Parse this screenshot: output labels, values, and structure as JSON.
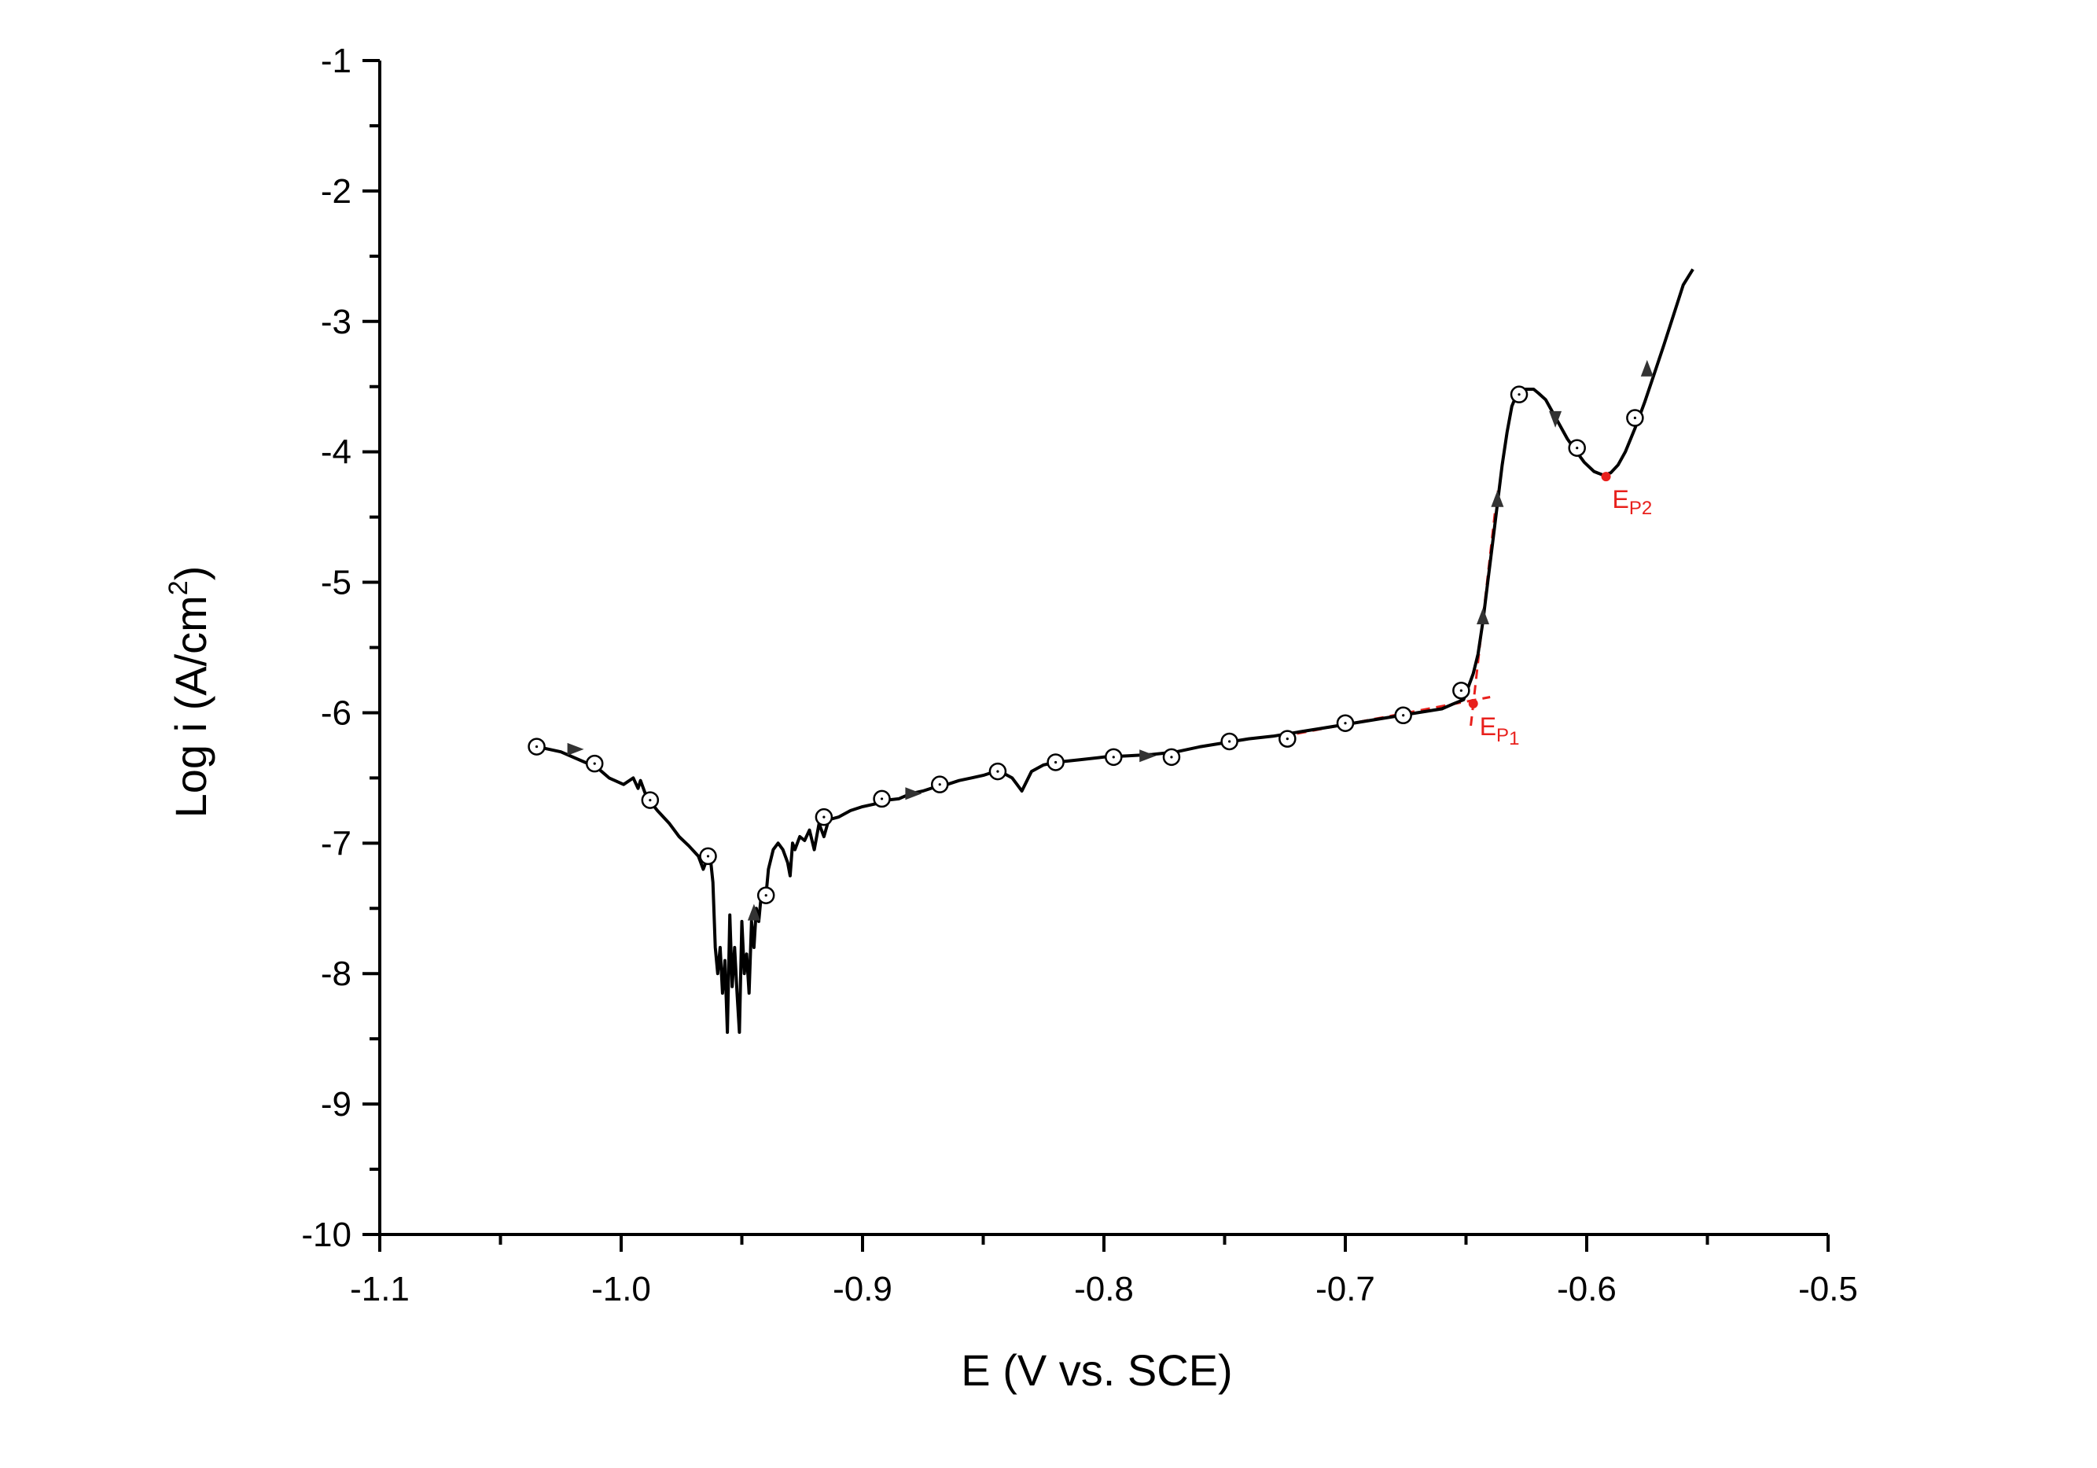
{
  "chart_data": {
    "type": "line",
    "title": "",
    "xlabel": "E (V vs. SCE)",
    "ylabel": "Log i (A/cm",
    "ylabel_superscript": "2",
    "ylabel_close": ")",
    "xlim": [
      -1.1,
      -0.5
    ],
    "ylim": [
      -10,
      -1
    ],
    "x_ticks": [
      -1.1,
      -1.0,
      -0.9,
      -0.8,
      -0.7,
      -0.6,
      -0.5
    ],
    "x_tick_labels": [
      "-1.1",
      "-1.0",
      "-0.9",
      "-0.8",
      "-0.7",
      "-0.6",
      "-0.5"
    ],
    "y_ticks": [
      -10,
      -9,
      -8,
      -7,
      -6,
      -5,
      -4,
      -3,
      -2,
      -1
    ],
    "y_tick_labels": [
      "-10",
      "-9",
      "-8",
      "-7",
      "-6",
      "-5",
      "-4",
      "-3",
      "-2",
      "-1"
    ],
    "grid": false,
    "series": [
      {
        "color": "#000000",
        "x": [
          -1.035,
          -1.025,
          -1.015,
          -1.01,
          -1.005,
          -0.999,
          -0.995,
          -0.993,
          -0.992,
          -0.99,
          -0.988,
          -0.985,
          -0.98,
          -0.976,
          -0.972,
          -0.968,
          -0.966,
          -0.965,
          -0.964,
          -0.963,
          -0.962,
          -0.961,
          -0.96,
          -0.959,
          -0.958,
          -0.957,
          -0.956,
          -0.955,
          -0.954,
          -0.953,
          -0.952,
          -0.951,
          -0.95,
          -0.949,
          -0.948,
          -0.947,
          -0.946,
          -0.945,
          -0.944,
          -0.943,
          -0.942,
          -0.941,
          -0.94,
          -0.939,
          -0.937,
          -0.935,
          -0.933,
          -0.931,
          -0.93,
          -0.929,
          -0.928,
          -0.926,
          -0.924,
          -0.922,
          -0.92,
          -0.918,
          -0.916,
          -0.914,
          -0.91,
          -0.905,
          -0.9,
          -0.895,
          -0.89,
          -0.885,
          -0.88,
          -0.875,
          -0.87,
          -0.865,
          -0.86,
          -0.855,
          -0.85,
          -0.845,
          -0.842,
          -0.838,
          -0.836,
          -0.834,
          -0.83,
          -0.825,
          -0.82,
          -0.81,
          -0.8,
          -0.79,
          -0.78,
          -0.77,
          -0.76,
          -0.75,
          -0.74,
          -0.73,
          -0.72,
          -0.71,
          -0.7,
          -0.69,
          -0.68,
          -0.67,
          -0.66,
          -0.655,
          -0.651,
          -0.649,
          -0.647,
          -0.645,
          -0.643,
          -0.641,
          -0.639,
          -0.637,
          -0.635,
          -0.633,
          -0.631,
          -0.629,
          -0.627,
          -0.625,
          -0.622,
          -0.62,
          -0.617,
          -0.614,
          -0.611,
          -0.608,
          -0.605,
          -0.601,
          -0.597,
          -0.593,
          -0.59,
          -0.587,
          -0.584,
          -0.58,
          -0.576,
          -0.572,
          -0.568,
          -0.564,
          -0.56,
          -0.556
        ],
        "y": [
          -6.26,
          -6.3,
          -6.38,
          -6.42,
          -6.5,
          -6.55,
          -6.5,
          -6.58,
          -6.52,
          -6.62,
          -6.68,
          -6.75,
          -6.85,
          -6.95,
          -7.02,
          -7.1,
          -7.2,
          -7.15,
          -7.05,
          -7.12,
          -7.3,
          -7.8,
          -8.0,
          -7.8,
          -8.15,
          -7.9,
          -8.45,
          -7.55,
          -8.1,
          -7.8,
          -8.15,
          -8.45,
          -7.6,
          -8.0,
          -7.85,
          -8.15,
          -7.6,
          -7.8,
          -7.5,
          -7.6,
          -7.4,
          -7.35,
          -7.4,
          -7.2,
          -7.05,
          -7.0,
          -7.05,
          -7.15,
          -7.25,
          -7.0,
          -7.05,
          -6.95,
          -6.98,
          -6.9,
          -7.05,
          -6.85,
          -6.95,
          -6.82,
          -6.8,
          -6.75,
          -6.72,
          -6.7,
          -6.67,
          -6.66,
          -6.62,
          -6.6,
          -6.57,
          -6.55,
          -6.52,
          -6.5,
          -6.48,
          -6.45,
          -6.46,
          -6.5,
          -6.55,
          -6.6,
          -6.45,
          -6.4,
          -6.38,
          -6.36,
          -6.34,
          -6.33,
          -6.32,
          -6.3,
          -6.26,
          -6.23,
          -6.2,
          -6.18,
          -6.15,
          -6.12,
          -6.09,
          -6.06,
          -6.03,
          -6.0,
          -5.97,
          -5.93,
          -5.9,
          -5.8,
          -5.7,
          -5.55,
          -5.3,
          -5.0,
          -4.7,
          -4.4,
          -4.1,
          -3.85,
          -3.65,
          -3.56,
          -3.52,
          -3.52,
          -3.52,
          -3.55,
          -3.6,
          -3.7,
          -3.8,
          -3.9,
          -3.98,
          -4.08,
          -4.15,
          -4.18,
          -4.16,
          -4.1,
          -4.0,
          -3.82,
          -3.62,
          -3.4,
          -3.18,
          -2.95,
          -2.72,
          -2.6
        ],
        "markers": [
          {
            "x": -1.035,
            "y": -6.26
          },
          {
            "x": -1.011,
            "y": -6.39
          },
          {
            "x": -0.988,
            "y": -6.67
          },
          {
            "x": -0.964,
            "y": -7.1
          },
          {
            "x": -0.94,
            "y": -7.4
          },
          {
            "x": -0.916,
            "y": -6.8
          },
          {
            "x": -0.892,
            "y": -6.66
          },
          {
            "x": -0.868,
            "y": -6.55
          },
          {
            "x": -0.844,
            "y": -6.45
          },
          {
            "x": -0.82,
            "y": -6.38
          },
          {
            "x": -0.796,
            "y": -6.34
          },
          {
            "x": -0.772,
            "y": -6.34
          },
          {
            "x": -0.748,
            "y": -6.22
          },
          {
            "x": -0.724,
            "y": -6.2
          },
          {
            "x": -0.7,
            "y": -6.08
          },
          {
            "x": -0.676,
            "y": -6.02
          },
          {
            "x": -0.652,
            "y": -5.83
          },
          {
            "x": -0.628,
            "y": -3.56
          },
          {
            "x": -0.604,
            "y": -3.97
          },
          {
            "x": -0.58,
            "y": -3.74
          }
        ],
        "arrows": [
          {
            "x": -1.02,
            "y": -6.28,
            "dir": "right"
          },
          {
            "x": -0.945,
            "y": -7.55,
            "dir": "up"
          },
          {
            "x": -0.88,
            "y": -6.62,
            "dir": "right"
          },
          {
            "x": -0.783,
            "y": -6.33,
            "dir": "right"
          },
          {
            "x": -0.643,
            "y": -5.28,
            "dir": "up"
          },
          {
            "x": -0.637,
            "y": -4.38,
            "dir": "up"
          },
          {
            "x": -0.613,
            "y": -3.73,
            "dir": "down"
          },
          {
            "x": -0.575,
            "y": -3.38,
            "dir": "up"
          }
        ]
      }
    ],
    "annotations": [
      {
        "label_main": "E",
        "label_sub": "P",
        "label_sub2": "1",
        "point": {
          "x": -0.647,
          "y": -5.93
        },
        "color": "#e8201c",
        "fit_lines": [
          {
            "x": [
              -0.72,
              -0.64
            ],
            "y": [
              -6.16,
              -5.88
            ]
          },
          {
            "x": [
              -0.648,
              -0.637
            ],
            "y": [
              -6.1,
              -4.3
            ]
          }
        ]
      },
      {
        "label_main": "E",
        "label_sub": "P2",
        "label_sub2": "",
        "point": {
          "x": -0.592,
          "y": -4.19
        },
        "color": "#e8201c",
        "fit_lines": []
      }
    ]
  }
}
